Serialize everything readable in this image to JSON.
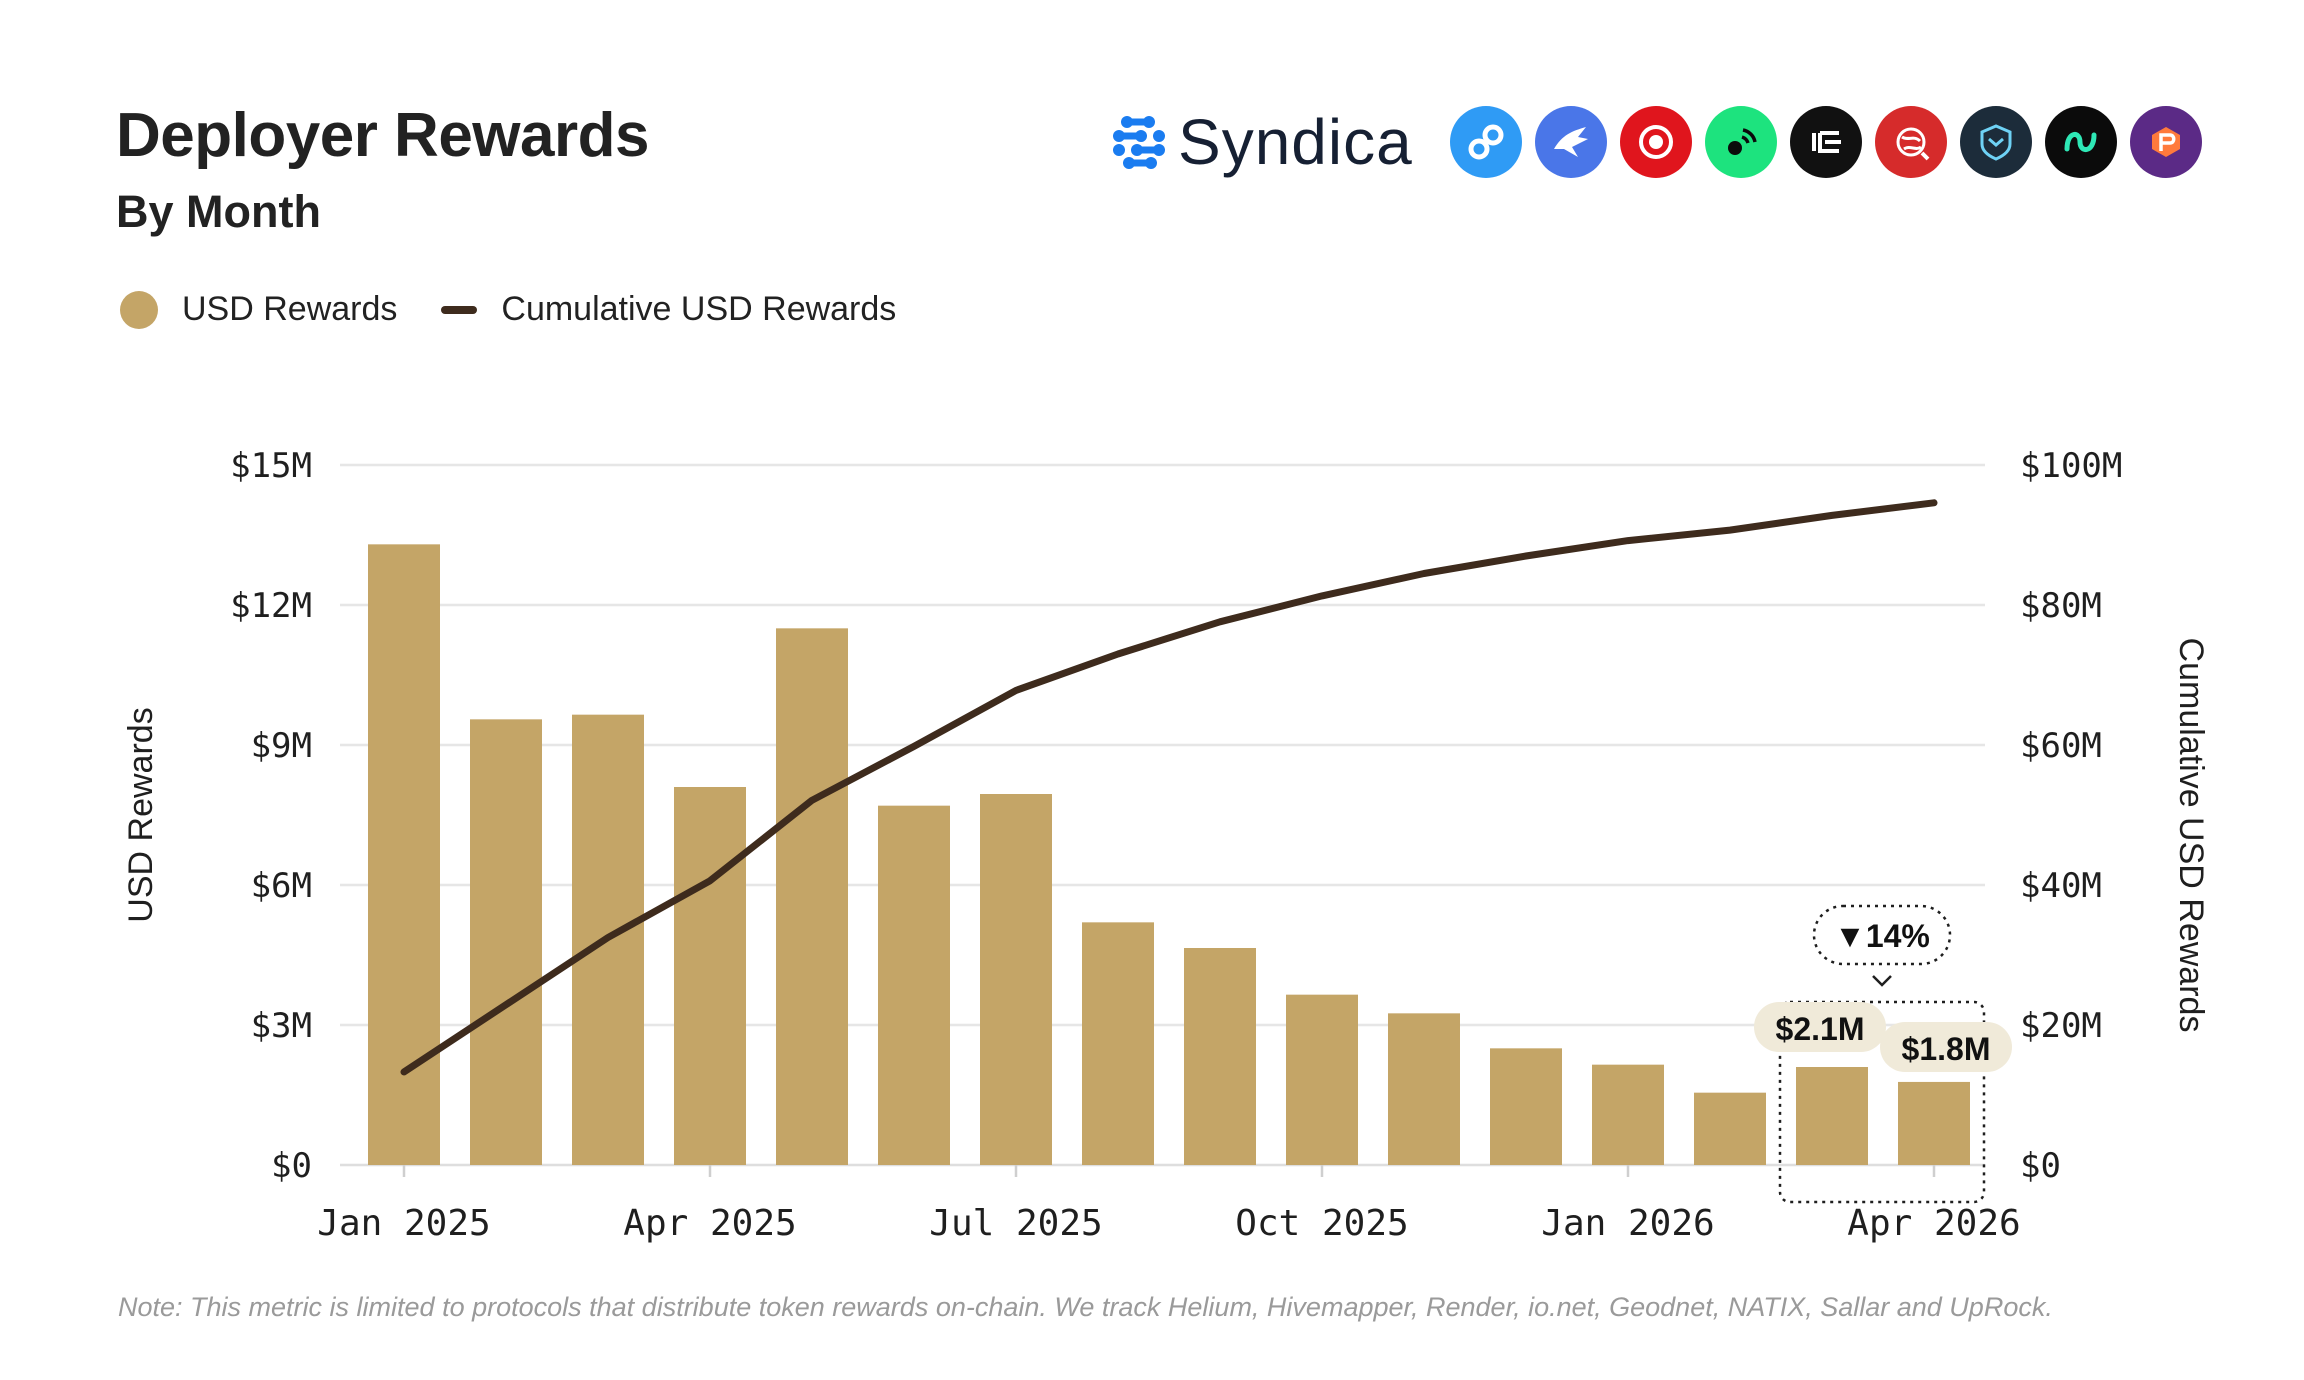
{
  "header": {
    "title": "Deployer Rewards",
    "subtitle": "By Month",
    "brand": "Syndica"
  },
  "logos": [
    {
      "icon": "helium-icon",
      "color": "#2f9bf5"
    },
    {
      "icon": "hivemapper-icon",
      "color": "#4a76e8"
    },
    {
      "icon": "render-icon",
      "color": "#e0151d"
    },
    {
      "icon": "ionet-signal-icon",
      "color": "#1de37e"
    },
    {
      "icon": "ionet-icon",
      "color": "#111111"
    },
    {
      "icon": "geodnet-icon",
      "color": "#d62b2b"
    },
    {
      "icon": "natix-icon",
      "color": "#1c2c3a"
    },
    {
      "icon": "sallar-icon",
      "color": "#0b0b0b"
    },
    {
      "icon": "uprock-icon",
      "color": "#5b2a86"
    }
  ],
  "legend": [
    {
      "label": "USD Rewards",
      "color": "#c4a567",
      "shape": "dot"
    },
    {
      "label": "Cumulative USD Rewards",
      "color": "#3e2b1d",
      "shape": "line"
    }
  ],
  "chart_data": {
    "type": "bar",
    "categories": [
      "Jan 2025",
      "Feb 2025",
      "Mar 2025",
      "Apr 2025",
      "May 2025",
      "Jun 2025",
      "Jul 2025",
      "Aug 2025",
      "Sep 2025",
      "Oct 2025",
      "Nov 2025",
      "Dec 2025",
      "Jan 2026",
      "Feb 2026",
      "Mar 2026",
      "Apr 2026"
    ],
    "x_tick_labels": [
      "Jan 2025",
      "Apr 2025",
      "Jul 2025",
      "Oct 2025",
      "Jan 2026",
      "Apr 2026"
    ],
    "x_tick_indices": [
      0,
      3,
      6,
      9,
      12,
      15
    ],
    "series": [
      {
        "name": "USD Rewards",
        "axis": "left",
        "type": "bar",
        "color": "#c4a567",
        "values": [
          13.3,
          9.55,
          9.65,
          8.1,
          11.5,
          7.7,
          7.95,
          5.2,
          4.65,
          3.65,
          3.25,
          2.5,
          2.15,
          1.55,
          2.1,
          1.78
        ]
      },
      {
        "name": "Cumulative USD Rewards",
        "axis": "right",
        "type": "line",
        "color": "#3e2b1d",
        "values": [
          13.3,
          22.9,
          32.5,
          40.6,
          52.1,
          59.8,
          67.8,
          73.0,
          77.6,
          81.3,
          84.5,
          87.0,
          89.2,
          90.7,
          92.8,
          94.6
        ]
      }
    ],
    "ylabel": "USD Rewards",
    "ylabel_right": "Cumulative USD Rewards",
    "ylim": [
      0,
      15
    ],
    "ylim_right": [
      0,
      100
    ],
    "y_ticks": [
      "$0",
      "$3M",
      "$6M",
      "$9M",
      "$12M",
      "$15M"
    ],
    "y_ticks_right": [
      "$0",
      "$20M",
      "$40M",
      "$60M",
      "$80M",
      "$100M"
    ],
    "grid": true,
    "legend_position": "top-left",
    "annotations": [
      {
        "text": "$2.1M",
        "index": 14
      },
      {
        "text": "$1.8M",
        "index": 15
      },
      {
        "text": "▼14%",
        "type": "change-badge"
      }
    ]
  },
  "note": "Note: This metric is limited to protocols that distribute token rewards on-chain. We track Helium, Hivemapper, Render, io.net, Geodnet, NATIX, Sallar and UpRock."
}
